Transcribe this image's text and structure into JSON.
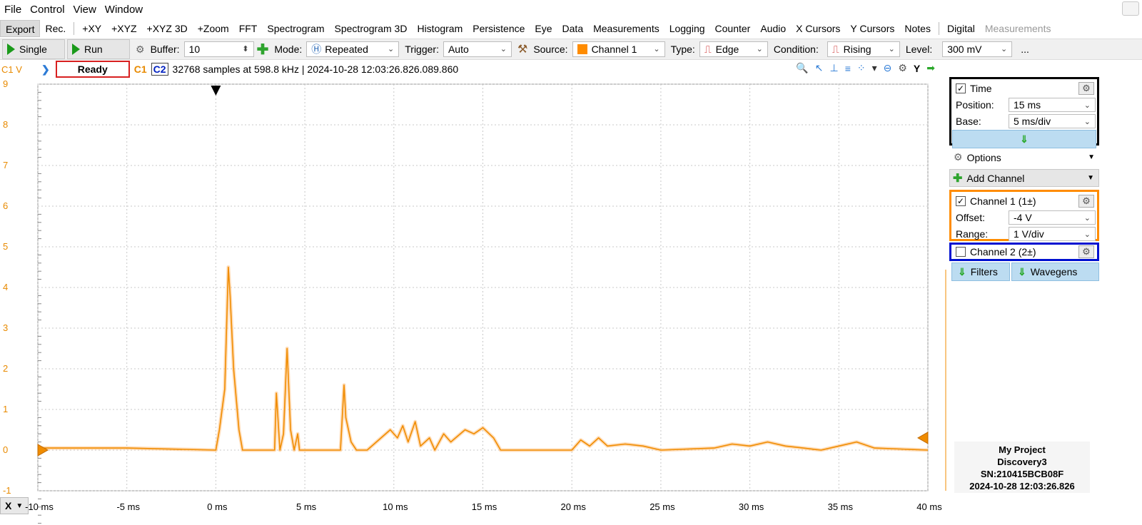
{
  "menu": [
    "File",
    "Control",
    "View",
    "Window"
  ],
  "tabs": [
    {
      "label": "Export",
      "active": true
    },
    {
      "label": "Rec."
    },
    {
      "label": "+XY"
    },
    {
      "label": "+XYZ"
    },
    {
      "label": "+XYZ 3D"
    },
    {
      "label": "+Zoom"
    },
    {
      "label": "FFT"
    },
    {
      "label": "Spectrogram"
    },
    {
      "label": "Spectrogram 3D"
    },
    {
      "label": "Histogram"
    },
    {
      "label": "Persistence"
    },
    {
      "label": "Eye"
    },
    {
      "label": "Data"
    },
    {
      "label": "Measurements"
    },
    {
      "label": "Logging"
    },
    {
      "label": "Counter"
    },
    {
      "label": "Audio"
    },
    {
      "label": "X Cursors"
    },
    {
      "label": "Y Cursors"
    },
    {
      "label": "Notes"
    },
    {
      "label": "Digital"
    },
    {
      "label": "Measurements",
      "dim": true
    }
  ],
  "toolbar": {
    "single_label": "Single",
    "run_label": "Run",
    "buffer_label": "Buffer:",
    "buffer_value": "10",
    "mode_label": "Mode:",
    "mode_value": "Repeated",
    "trigger_label": "Trigger:",
    "trigger_value": "Auto",
    "source_label": "Source:",
    "source_value": "Channel 1",
    "type_label": "Type:",
    "type_value": "Edge",
    "condition_label": "Condition:",
    "condition_value": "Rising",
    "level_label": "Level:",
    "level_value": "300 mV",
    "more": "..."
  },
  "status": {
    "channel_axis": "C1 V",
    "state": "Ready",
    "c1": "C1",
    "c2": "C2",
    "info": "32768 samples at 598.8 kHz  | 2024-10-28 12:03:26.826.089.860"
  },
  "plot": {
    "y_ticks": [
      "9",
      "8",
      "7",
      "6",
      "5",
      "4",
      "3",
      "2",
      "1",
      "0",
      "-1"
    ],
    "x_axis_button": "X",
    "x_ticks": [
      "-10 ms",
      "-5 ms",
      "0 ms",
      "5 ms",
      "10 ms",
      "15 ms",
      "20 ms",
      "25 ms",
      "30 ms",
      "35 ms",
      "40 ms"
    ],
    "trace_color": "#f08c00"
  },
  "chart_data": {
    "type": "line",
    "title": "",
    "xlabel": "",
    "ylabel": "C1 V",
    "xlim": [
      -10,
      40
    ],
    "ylim": [
      -1,
      9
    ],
    "grid": true,
    "series": [
      {
        "name": "C1",
        "x": [
          -10,
          -5,
          0,
          0.2,
          0.5,
          0.7,
          0.8,
          1.0,
          1.3,
          1.5,
          2.5,
          3.3,
          3.4,
          3.6,
          3.8,
          4.0,
          4.2,
          4.4,
          4.6,
          4.7,
          4.8,
          5.0,
          7.0,
          7.2,
          7.3,
          7.6,
          7.9,
          8.5,
          9.8,
          10.2,
          10.5,
          10.8,
          11.2,
          11.5,
          12.0,
          12.3,
          12.8,
          13.2,
          14.0,
          14.5,
          15.0,
          15.6,
          16.0,
          20.0,
          20.5,
          21.0,
          21.5,
          22.0,
          23.0,
          24.0,
          25.0,
          28.0,
          29.0,
          30.0,
          31.0,
          32.0,
          33.0,
          34.0,
          35.0,
          36.0,
          37.0,
          40.0
        ],
        "y": [
          0.05,
          0.05,
          0,
          0.5,
          1.5,
          4.5,
          3.8,
          2.0,
          0.5,
          0,
          0,
          0,
          1.4,
          0,
          0.4,
          2.5,
          0.5,
          0,
          0.4,
          0,
          0,
          0,
          0,
          1.6,
          0.8,
          0.2,
          0,
          0,
          0.5,
          0.3,
          0.6,
          0.2,
          0.7,
          0.1,
          0.3,
          0,
          0.4,
          0.2,
          0.5,
          0.4,
          0.55,
          0.3,
          0,
          0,
          0.25,
          0.1,
          0.3,
          0.1,
          0.15,
          0.1,
          0,
          0.05,
          0.15,
          0.1,
          0.2,
          0.1,
          0.05,
          0,
          0.1,
          0.2,
          0.05,
          0
        ]
      }
    ]
  },
  "panel": {
    "time_title": "Time",
    "position_label": "Position:",
    "position_value": "15 ms",
    "base_label": "Base:",
    "base_value": "5 ms/div",
    "options_label": "Options",
    "add_channel_label": "Add Channel",
    "ch1_title": "Channel 1 (1±)",
    "offset_label": "Offset:",
    "offset_value": "-4 V",
    "range_label": "Range:",
    "range_value": "1 V/div",
    "ch2_title": "Channel 2 (2±)",
    "filters_label": "Filters",
    "wavegens_label": "Wavegens"
  },
  "device": {
    "project": "My Project",
    "model": "Discovery3",
    "sn": "SN:210415BCB08F",
    "timestamp": "2024-10-28 12:03:26.826"
  }
}
